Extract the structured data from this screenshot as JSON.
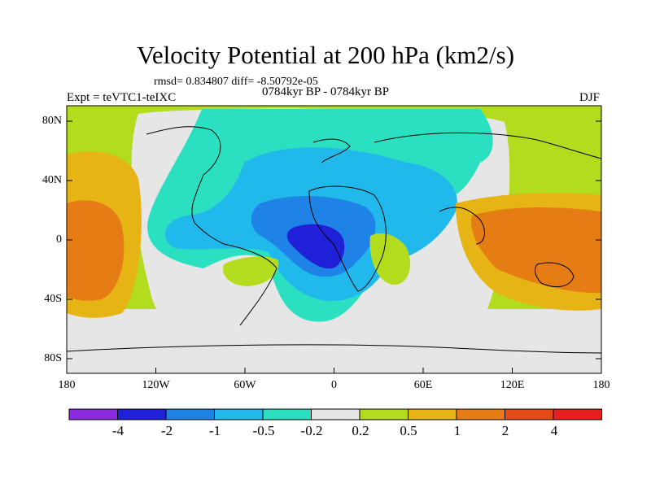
{
  "title": "Velocity Potential at 200 hPa (km2/s)",
  "subtitle": "rmsd= 0.834807 diff= -8.50792e-05",
  "left_label": "Expt = teVTC1-teIXC",
  "center_label": "0784kyr BP - 0784kyr BP",
  "right_label": "DJF",
  "map": {
    "projection": "cylindrical-equidistant",
    "lon_range": [
      -180,
      180
    ],
    "lat_range": [
      -90,
      90
    ],
    "x_ticks": [
      "180",
      "120W",
      "60W",
      "0",
      "60E",
      "120E",
      "180"
    ],
    "y_ticks": [
      "80N",
      "40N",
      "0",
      "40S",
      "80S"
    ]
  },
  "colorbar": {
    "labels": [
      "-4",
      "-2",
      "-1",
      "-0.5",
      "-0.2",
      "0.2",
      "0.5",
      "1",
      "2",
      "4"
    ],
    "colors": [
      "#8a2be2",
      "#2020d8",
      "#1e82e6",
      "#21b8ec",
      "#2ae0c0",
      "#e6e6e6",
      "#b4dc1e",
      "#e6b414",
      "#e67d14",
      "#e64a14",
      "#e61e1e"
    ]
  }
}
